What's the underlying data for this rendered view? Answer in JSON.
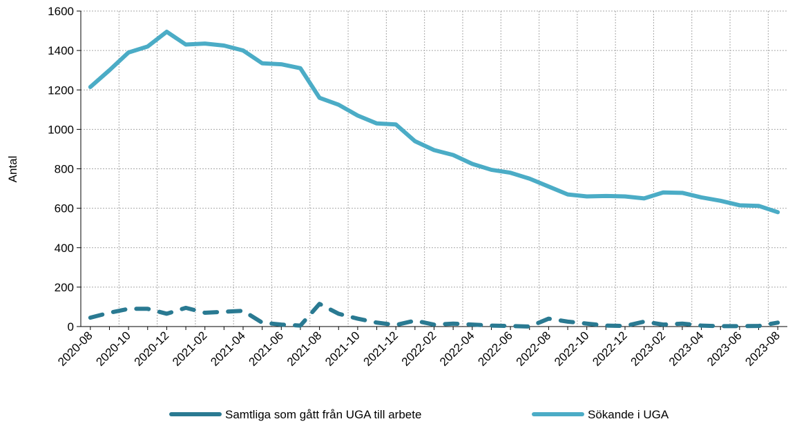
{
  "chart_data": {
    "type": "line",
    "ylabel": "Antal",
    "categories": [
      "2020-08",
      null,
      "2020-10",
      null,
      "2020-12",
      null,
      "2021-02",
      null,
      "2021-04",
      null,
      "2021-06",
      null,
      "2021-08",
      null,
      "2021-10",
      null,
      "2021-12",
      null,
      "2022-02",
      null,
      "2022-04",
      null,
      "2022-06",
      null,
      "2022-08",
      null,
      "2022-10",
      null,
      "2022-12",
      null,
      "2023-02",
      null,
      "2023-04",
      null,
      "2023-06",
      null,
      "2023-08"
    ],
    "series": [
      {
        "name": "Samtliga som gått från UGA till arbete",
        "color": "#2a7a92",
        "dashed": true,
        "values": [
          45,
          70,
          90,
          90,
          65,
          95,
          70,
          75,
          80,
          20,
          10,
          5,
          115,
          65,
          40,
          20,
          8,
          30,
          10,
          15,
          10,
          5,
          3,
          0,
          40,
          25,
          15,
          5,
          3,
          25,
          10,
          15,
          5,
          2,
          2,
          3,
          20
        ]
      },
      {
        "name": "Sökande i UGA",
        "color": "#4bacc6",
        "dashed": false,
        "values": [
          1215,
          1300,
          1390,
          1420,
          1495,
          1430,
          1435,
          1425,
          1400,
          1335,
          1330,
          1310,
          1160,
          1125,
          1070,
          1030,
          1025,
          940,
          895,
          870,
          825,
          795,
          780,
          750,
          710,
          670,
          660,
          662,
          660,
          650,
          680,
          678,
          655,
          638,
          615,
          612,
          580
        ]
      }
    ],
    "ylim": [
      0,
      1600
    ],
    "yticks": [
      0,
      200,
      400,
      600,
      800,
      1000,
      1200,
      1400,
      1600
    ],
    "grid": true,
    "legend": "bottom"
  }
}
